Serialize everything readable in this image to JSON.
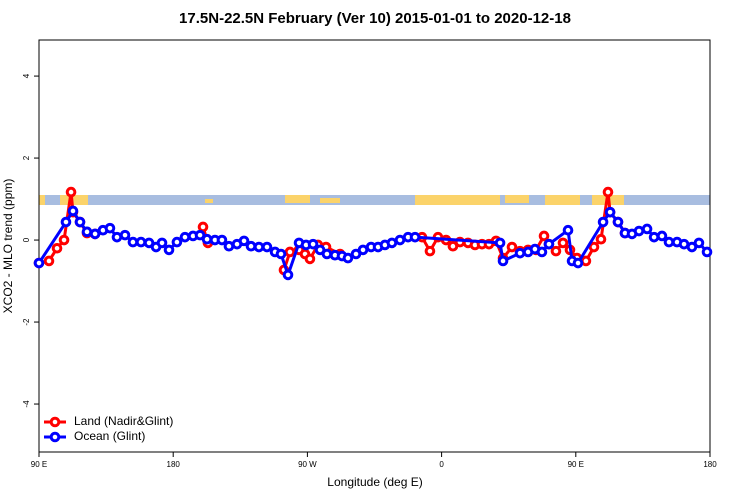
{
  "chart_data": {
    "type": "line",
    "title": "17.5N-22.5N February (Ver 10)   2015-01-01 to 2020-12-18",
    "x_label": "Longitude (deg E)",
    "y_label": "XCO2 - MLO trend (ppm)",
    "xlim": [
      90,
      540
    ],
    "ylim": [
      -5.17,
      4.88
    ],
    "xticks": [
      {
        "value": 90,
        "label": "90 E"
      },
      {
        "value": 180,
        "label": "180"
      },
      {
        "value": 270,
        "label": "90 W"
      },
      {
        "value": 360,
        "label": "0"
      },
      {
        "value": 450,
        "label": "90 E"
      },
      {
        "value": 540,
        "label": "180"
      }
    ],
    "yticks": [
      -4,
      -2,
      0,
      2,
      4
    ],
    "legend": "bottom-left",
    "series": [
      {
        "name": "Land (Nadir&Glint)",
        "color": "#ff0000",
        "x": [
          90,
          96.7,
          102.1,
          106.8,
          111.5,
          112.8,
          117.5,
          122.2,
          127.6,
          160,
          200,
          203.3,
          230,
          254.3,
          258.3,
          264.4,
          268.4,
          271.7,
          277.1,
          282.5,
          291.9,
          320,
          346.9,
          352.2,
          357.6,
          363,
          367.6,
          372.3,
          377.7,
          382.4,
          387.1,
          391.8,
          396.5,
          401.2,
          407.2,
          412.6,
          418,
          423.3,
          428.7,
          432,
          436.7,
          441.4,
          446.1,
          450.8,
          456.8,
          462.2,
          466.9,
          471.6,
          473,
          478.3,
          483
        ],
        "values": [
          -0.56,
          -0.51,
          -0.2,
          0,
          1.17,
          0.68,
          0.44,
          0.17,
          0.15,
          null,
          0.32,
          -0.07,
          null,
          -0.73,
          -0.29,
          -0.24,
          -0.34,
          -0.46,
          -0.12,
          -0.17,
          -0.34,
          null,
          0.07,
          -0.27,
          0.07,
          0,
          -0.15,
          -0.05,
          -0.07,
          -0.12,
          -0.1,
          -0.1,
          -0.02,
          -0.44,
          -0.17,
          -0.27,
          -0.24,
          -0.24,
          0.1,
          -0.1,
          -0.27,
          -0.07,
          -0.24,
          -0.44,
          -0.51,
          -0.17,
          0.02,
          1.17,
          0.68,
          0.44,
          0.17
        ]
      },
      {
        "name": "Ocean (Glint)",
        "color": "#0000ff",
        "x": [
          90,
          108.1,
          112.8,
          117.5,
          122.2,
          127.6,
          132.9,
          137.6,
          142.3,
          147.7,
          153,
          158.4,
          163.8,
          168.5,
          172.5,
          177.2,
          182.5,
          187.9,
          193.3,
          198,
          202.7,
          208,
          212.7,
          217.4,
          222.8,
          227.5,
          232.2,
          237.5,
          242.9,
          248.3,
          252.3,
          257,
          264.4,
          269.1,
          273.8,
          278.5,
          283.1,
          288.5,
          293.2,
          297.2,
          302.6,
          307.3,
          312.7,
          317.4,
          322,
          326.7,
          332.1,
          337.5,
          342.2,
          399.2,
          401.2,
          412.6,
          418,
          422.6,
          427.3,
          432,
          444.8,
          447.5,
          451.5,
          468.3,
          473,
          478.3,
          483,
          487.7,
          492.4,
          497.8,
          502.5,
          507.8,
          512.5,
          517.9,
          522.6,
          527.9,
          532.6,
          538
        ],
        "values": [
          -0.56,
          0.44,
          0.71,
          0.44,
          0.2,
          0.15,
          0.24,
          0.29,
          0.07,
          0.12,
          -0.05,
          -0.05,
          -0.07,
          -0.17,
          -0.07,
          -0.24,
          -0.05,
          0.07,
          0.1,
          0.12,
          0.02,
          0,
          0,
          -0.15,
          -0.1,
          -0.02,
          -0.15,
          -0.17,
          -0.17,
          -0.29,
          -0.34,
          -0.85,
          -0.07,
          -0.12,
          -0.1,
          -0.24,
          -0.34,
          -0.37,
          -0.39,
          -0.44,
          -0.34,
          -0.24,
          -0.17,
          -0.17,
          -0.12,
          -0.07,
          0,
          0.07,
          0.07,
          -0.07,
          -0.51,
          -0.32,
          -0.29,
          -0.22,
          -0.29,
          -0.1,
          0.24,
          -0.51,
          -0.56,
          0.44,
          0.68,
          0.44,
          0.17,
          0.15,
          0.22,
          0.27,
          0.07,
          0.1,
          -0.05,
          -0.05,
          -0.1,
          -0.17,
          -0.07,
          -0.29
        ]
      }
    ]
  }
}
